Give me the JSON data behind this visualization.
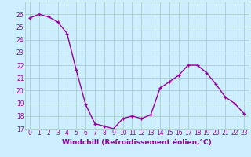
{
  "x": [
    0,
    1,
    2,
    3,
    4,
    5,
    6,
    7,
    8,
    9,
    10,
    11,
    12,
    13,
    14,
    15,
    16,
    17,
    18,
    19,
    20,
    21,
    22,
    23
  ],
  "y": [
    25.7,
    26.0,
    25.8,
    25.4,
    24.5,
    21.6,
    18.9,
    17.4,
    17.2,
    17.0,
    17.8,
    18.0,
    17.8,
    18.1,
    20.2,
    20.7,
    21.2,
    22.0,
    22.0,
    21.4,
    20.5,
    19.5,
    19.0,
    18.2
  ],
  "line_color": "#990099",
  "marker": "+",
  "marker_size": 3,
  "background_color": "#cceeff",
  "grid_color": "#aacccc",
  "xlabel": "Windchill (Refroidissement éolien,°C)",
  "xlabel_color": "#990099",
  "tick_color": "#990099",
  "ylim": [
    17,
    27
  ],
  "xlim": [
    -0.5,
    23.5
  ],
  "yticks": [
    17,
    18,
    19,
    20,
    21,
    22,
    23,
    24,
    25,
    26
  ],
  "xticks": [
    0,
    1,
    2,
    3,
    4,
    5,
    6,
    7,
    8,
    9,
    10,
    11,
    12,
    13,
    14,
    15,
    16,
    17,
    18,
    19,
    20,
    21,
    22,
    23
  ],
  "line_width": 1.0,
  "tick_fontsize": 5.5,
  "xlabel_fontsize": 6.5
}
